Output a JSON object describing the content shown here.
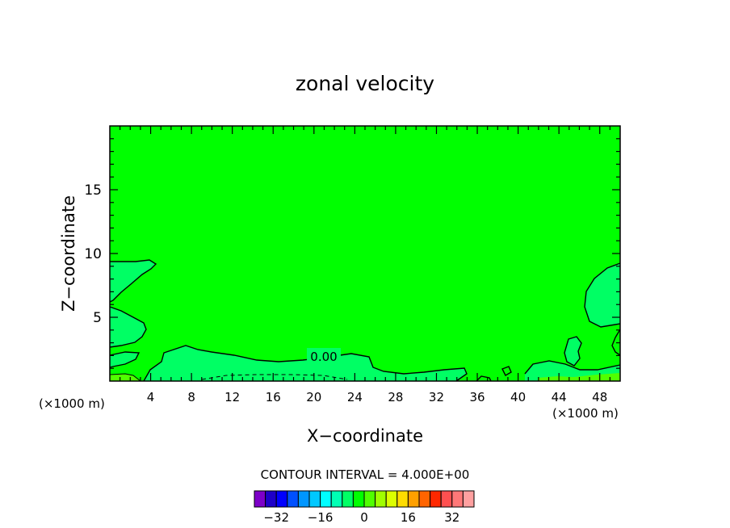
{
  "chart_data": {
    "type": "heatmap",
    "title": "zonal velocity",
    "xlabel": "X−coordinate",
    "ylabel": "Z−coordinate",
    "x_ticks": [
      "4",
      "8",
      "12",
      "16",
      "20",
      "24",
      "28",
      "32",
      "36",
      "40",
      "44",
      "48"
    ],
    "x_unit_left": "(×1000 m)",
    "x_unit_right": "(×1000 m)",
    "y_ticks": [
      "5",
      "10",
      "15"
    ],
    "xlim": [
      0,
      50
    ],
    "ylim": [
      0,
      20
    ],
    "contour_label": "0.00",
    "contour_interval_text": "CONTOUR INTERVAL = 4.000E+00",
    "colorbar": {
      "tick_labels": [
        "−32",
        "−16",
        "0",
        "16",
        "32"
      ],
      "tick_values": [
        -32,
        -16,
        0,
        16,
        32
      ],
      "colors": [
        "#7d00c8",
        "#1e00c8",
        "#0000ff",
        "#0050ff",
        "#0096ff",
        "#00c8ff",
        "#00ffff",
        "#00ffb4",
        "#00ff64",
        "#00ff00",
        "#50ff00",
        "#a0ff00",
        "#dcff00",
        "#ffdc00",
        "#ffa000",
        "#ff6400",
        "#ff2800",
        "#ff5050",
        "#ff7878",
        "#ffa0a0"
      ]
    },
    "field_colors": {
      "background": "#00ff00",
      "slight_positive": "#00ff64",
      "weak_negative": "#50ff00"
    }
  }
}
